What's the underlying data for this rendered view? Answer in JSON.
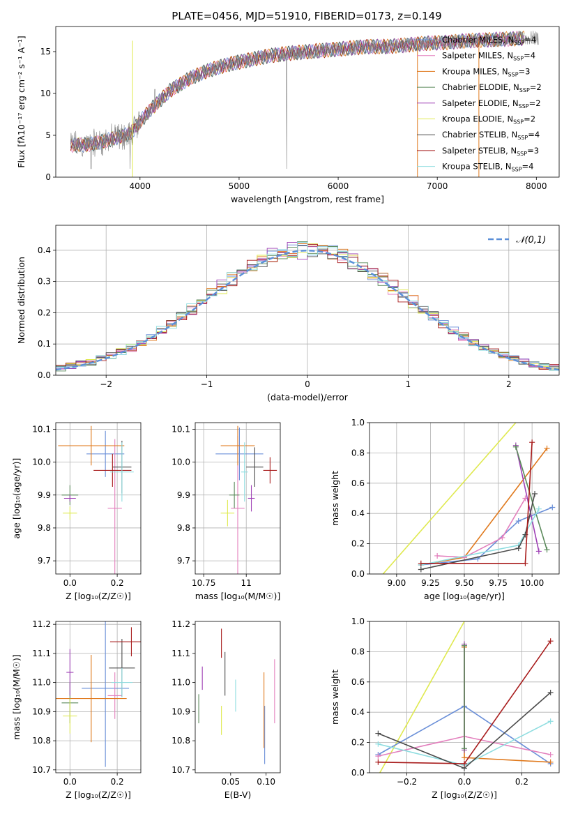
{
  "figure_title": "PLATE=0456, MJD=51910, FIBERID=0173, z=0.149",
  "colors": {
    "Chabrier MILES": "#6a8fd8",
    "Salpeter MILES": "#e37fbd",
    "Kroupa MILES": "#e07a1e",
    "Chabrier ELODIE": "#5b8a5b",
    "Salpeter ELODIE": "#9e3fb5",
    "Kroupa ELODIE": "#dfe94e",
    "Chabrier STELIB": "#4a4a4a",
    "Salpeter STELIB": "#a81c1c",
    "Kroupa STELIB": "#8edde0",
    "data": "#808080",
    "normal": "#5b8fd8"
  },
  "chart_data": [
    {
      "type": "line",
      "name": "spectrum",
      "xlabel": "wavelength [Angstrom, rest frame]",
      "ylabel": "Flux [fλ10⁻¹⁷ erg cm⁻² s⁻¹ A⁻¹]",
      "xlim": [
        3150,
        8230
      ],
      "ylim": [
        0,
        18
      ],
      "xticks": [
        4000,
        5000,
        6000,
        7000,
        8000
      ],
      "yticks": [
        0,
        5,
        10,
        15
      ],
      "continuum_x": [
        3300,
        3500,
        3700,
        3900,
        4100,
        4300,
        4500,
        4700,
        4900,
        5100,
        5300,
        5500,
        5700,
        5900,
        6100,
        6300,
        6500,
        6700,
        6900,
        7100,
        7300,
        7500,
        7700,
        7900
      ],
      "continuum_y": [
        3.8,
        3.9,
        4.5,
        5.2,
        8.0,
        10.3,
        11.8,
        12.8,
        13.5,
        14.0,
        14.5,
        14.8,
        15.0,
        15.2,
        15.4,
        15.6,
        15.6,
        15.8,
        16.0,
        16.1,
        16.3,
        16.4,
        16.5,
        16.6
      ],
      "legend": [
        {
          "label": "Chabrier MILES",
          "n": "4"
        },
        {
          "label": "Salpeter MILES",
          "n": "4"
        },
        {
          "label": "Kroupa MILES",
          "n": "3"
        },
        {
          "label": "Chabrier ELODIE",
          "n": "2"
        },
        {
          "label": "Salpeter ELODIE",
          "n": "2"
        },
        {
          "label": "Kroupa ELODIE",
          "n": "2"
        },
        {
          "label": "Chabrier STELIB",
          "n": "4"
        },
        {
          "label": "Salpeter STELIB",
          "n": "3"
        },
        {
          "label": "Kroupa STELIB",
          "n": "4"
        }
      ],
      "legend_nssp_label": "N",
      "legend_nssp_sub": "SSP",
      "legend_position": "upper right"
    },
    {
      "type": "histogram",
      "name": "residuals",
      "xlabel": "(data-model)/error",
      "ylabel": "Normed distribution",
      "xlim": [
        -2.5,
        2.5
      ],
      "ylim": [
        0,
        0.48
      ],
      "xticks": [
        -2,
        -1,
        0,
        1,
        2
      ],
      "yticks": [
        0.0,
        0.1,
        0.2,
        0.3,
        0.4
      ],
      "bin_width": 0.1,
      "bin_start": -2.5,
      "legend_label": "𝒩(0,1)",
      "grid": true
    },
    {
      "type": "scatter",
      "name": "age_vs_Z",
      "xlabel": "Z [log₁₀(Z/Z☉)]",
      "ylabel": "age  [log₁₀(age/yr)]",
      "xlim": [
        -0.06,
        0.3
      ],
      "ylim": [
        9.66,
        10.12
      ],
      "xticks": [
        0.0,
        0.2
      ],
      "yticks": [
        9.7,
        9.8,
        9.9,
        10.0,
        10.1
      ],
      "grid": true,
      "points": [
        {
          "model": "Chabrier MILES",
          "x": 0.15,
          "xerr": 0.08,
          "y": 10.025,
          "yerr": 0.07
        },
        {
          "model": "Salpeter MILES",
          "x": 0.19,
          "xerr": 0.03,
          "y": 9.86,
          "yerr": 0.21
        },
        {
          "model": "Kroupa MILES",
          "x": 0.09,
          "xerr": 0.14,
          "y": 10.05,
          "yerr": 0.06
        },
        {
          "model": "Chabrier ELODIE",
          "x": 0.0,
          "xerr": 0.035,
          "y": 9.9,
          "yerr": 0.03
        },
        {
          "model": "Salpeter ELODIE",
          "x": 0.0,
          "xerr": 0.025,
          "y": 9.89,
          "yerr": 0.01
        },
        {
          "model": "Kroupa ELODIE",
          "x": 0.0,
          "xerr": 0.03,
          "y": 9.845,
          "yerr": 0.02
        },
        {
          "model": "Chabrier STELIB",
          "x": 0.22,
          "xerr": 0.04,
          "y": 9.985,
          "yerr": 0.08
        },
        {
          "model": "Salpeter STELIB",
          "x": 0.18,
          "xerr": 0.08,
          "y": 9.975,
          "yerr": 0.05
        },
        {
          "model": "Kroupa STELIB",
          "x": 0.22,
          "xerr": 0.05,
          "y": 9.97,
          "yerr": 0.09
        }
      ]
    },
    {
      "type": "scatter",
      "name": "age_vs_mass",
      "xlabel": "mass [log₁₀(M/M☉)]",
      "ylabel": "",
      "xlim": [
        10.7,
        11.2
      ],
      "ylim": [
        9.66,
        10.12
      ],
      "xticks": [
        10.75,
        11.0
      ],
      "yticks": [
        9.7,
        9.8,
        9.9,
        10.0,
        10.1
      ],
      "grid": true,
      "points": [
        {
          "model": "Chabrier MILES",
          "x": 10.96,
          "xerr": 0.14,
          "y": 10.025,
          "yerr": 0.08
        },
        {
          "model": "Salpeter MILES",
          "x": 10.95,
          "xerr": 0.04,
          "y": 9.86,
          "yerr": 0.22
        },
        {
          "model": "Kroupa MILES",
          "x": 10.95,
          "xerr": 0.1,
          "y": 10.05,
          "yerr": 0.06
        },
        {
          "model": "Chabrier ELODIE",
          "x": 10.93,
          "xerr": 0.03,
          "y": 9.9,
          "yerr": 0.04
        },
        {
          "model": "Salpeter ELODIE",
          "x": 11.03,
          "xerr": 0.02,
          "y": 9.89,
          "yerr": 0.04
        },
        {
          "model": "Kroupa ELODIE",
          "x": 10.89,
          "xerr": 0.04,
          "y": 9.845,
          "yerr": 0.04
        },
        {
          "model": "Chabrier STELIB",
          "x": 11.05,
          "xerr": 0.05,
          "y": 9.985,
          "yerr": 0.06
        },
        {
          "model": "Salpeter STELIB",
          "x": 11.14,
          "xerr": 0.04,
          "y": 9.975,
          "yerr": 0.04
        },
        {
          "model": "Kroupa STELIB",
          "x": 10.99,
          "xerr": 0.02,
          "y": 9.97,
          "yerr": 0.09
        }
      ]
    },
    {
      "type": "line",
      "name": "mass_weight_vs_age",
      "xlabel": "age  [log₁₀(age/yr)]",
      "ylabel": "mass weight",
      "xlim": [
        8.8,
        10.2
      ],
      "ylim": [
        0,
        1.0
      ],
      "xticks": [
        9.0,
        9.25,
        9.5,
        9.75,
        10.0
      ],
      "yticks": [
        0.0,
        0.2,
        0.4,
        0.6,
        0.8,
        1.0
      ],
      "grid": true,
      "series": [
        {
          "model": "Kroupa ELODIE",
          "x": [
            8.9,
            9.88
          ],
          "y": [
            0.0,
            1.0
          ]
        },
        {
          "model": "Kroupa MILES",
          "x": [
            9.18,
            9.5,
            10.11
          ],
          "y": [
            0.06,
            0.11,
            0.83
          ]
        },
        {
          "model": "Chabrier MILES",
          "x": [
            9.18,
            9.6,
            9.9,
            10.15
          ],
          "y": [
            0.06,
            0.1,
            0.35,
            0.44
          ]
        },
        {
          "model": "Salpeter MILES",
          "x": [
            9.3,
            9.5,
            9.78,
            9.95
          ],
          "y": [
            0.12,
            0.11,
            0.24,
            0.5
          ]
        },
        {
          "model": "Salpeter ELODIE",
          "x": [
            9.88,
            10.05
          ],
          "y": [
            0.85,
            0.15
          ]
        },
        {
          "model": "Chabrier ELODIE",
          "x": [
            9.88,
            10.11
          ],
          "y": [
            0.84,
            0.16
          ]
        },
        {
          "model": "Kroupa STELIB",
          "x": [
            9.18,
            9.9,
            10.05
          ],
          "y": [
            0.06,
            0.19,
            0.43
          ]
        },
        {
          "model": "Chabrier STELIB",
          "x": [
            9.18,
            9.9,
            9.95,
            10.02
          ],
          "y": [
            0.03,
            0.17,
            0.26,
            0.53
          ]
        },
        {
          "model": "Salpeter STELIB",
          "x": [
            9.18,
            9.95,
            10.0
          ],
          "y": [
            0.07,
            0.07,
            0.87
          ]
        }
      ]
    },
    {
      "type": "scatter",
      "name": "mass_vs_Z",
      "xlabel": "Z [log₁₀(Z/Z☉)]",
      "ylabel": "mass [log₁₀(M/M☉)]",
      "xlim": [
        -0.06,
        0.3
      ],
      "ylim": [
        10.69,
        11.21
      ],
      "xticks": [
        0.0,
        0.2
      ],
      "yticks": [
        10.7,
        10.8,
        10.9,
        11.0,
        11.1,
        11.2
      ],
      "grid": true,
      "points": [
        {
          "model": "Chabrier MILES",
          "x": 0.15,
          "xerr": 0.1,
          "y": 10.98,
          "yerr": 0.27
        },
        {
          "model": "Salpeter MILES",
          "x": 0.19,
          "xerr": 0.03,
          "y": 10.955,
          "yerr": 0.08
        },
        {
          "model": "Kroupa MILES",
          "x": 0.09,
          "xerr": 0.15,
          "y": 10.945,
          "yerr": 0.15
        },
        {
          "model": "Chabrier ELODIE",
          "x": 0.0,
          "xerr": 0.035,
          "y": 10.93,
          "yerr": 0.07
        },
        {
          "model": "Salpeter ELODIE",
          "x": 0.0,
          "xerr": 0.015,
          "y": 11.035,
          "yerr": 0.08
        },
        {
          "model": "Kroupa ELODIE",
          "x": 0.0,
          "xerr": 0.03,
          "y": 10.885,
          "yerr": 0.06
        },
        {
          "model": "Chabrier STELIB",
          "x": 0.22,
          "xerr": 0.055,
          "y": 11.05,
          "yerr": 0.1
        },
        {
          "model": "Salpeter STELIB",
          "x": 0.26,
          "xerr": 0.09,
          "y": 11.14,
          "yerr": 0.05
        },
        {
          "model": "Kroupa STELIB",
          "x": 0.22,
          "xerr": 0.045,
          "y": 11.0,
          "yerr": 0.05
        }
      ]
    },
    {
      "type": "scatter",
      "name": "mass_vs_EBV",
      "xlabel": "E(B-V)",
      "ylabel": "",
      "xlim": [
        0.0,
        0.12
      ],
      "ylim": [
        10.69,
        11.21
      ],
      "xticks": [
        0.05,
        0.1
      ],
      "yticks": [
        10.7,
        10.8,
        10.9,
        11.0,
        11.1,
        11.2
      ],
      "grid": false,
      "points": [
        {
          "model": "Chabrier MILES",
          "x": 0.098,
          "y": 10.82,
          "yerr": 0.1
        },
        {
          "model": "Salpeter MILES",
          "x": 0.112,
          "y": 10.97,
          "yerr": 0.11
        },
        {
          "model": "Kroupa MILES",
          "x": 0.097,
          "y": 10.905,
          "yerr": 0.13
        },
        {
          "model": "Chabrier ELODIE",
          "x": 0.005,
          "y": 10.91,
          "yerr": 0.05
        },
        {
          "model": "Salpeter ELODIE",
          "x": 0.01,
          "y": 11.015,
          "yerr": 0.04
        },
        {
          "model": "Kroupa ELODIE",
          "x": 0.037,
          "y": 10.87,
          "yerr": 0.05
        },
        {
          "model": "Chabrier STELIB",
          "x": 0.042,
          "y": 11.03,
          "yerr": 0.075
        },
        {
          "model": "Salpeter STELIB",
          "x": 0.037,
          "y": 11.135,
          "yerr": 0.05
        },
        {
          "model": "Kroupa STELIB",
          "x": 0.057,
          "y": 10.955,
          "yerr": 0.055
        }
      ]
    },
    {
      "type": "line",
      "name": "mass_weight_vs_Z",
      "xlabel": "Z [log₁₀(Z/Z☉)]",
      "ylabel": "mass weight",
      "xlim": [
        -0.33,
        0.33
      ],
      "ylim": [
        0,
        1.0
      ],
      "xticks": [
        -0.2,
        0.0,
        0.2
      ],
      "yticks": [
        0.0,
        0.2,
        0.4,
        0.6,
        0.8,
        1.0
      ],
      "grid": true,
      "series": [
        {
          "model": "Kroupa ELODIE",
          "x": [
            -0.3,
            0.0
          ],
          "y": [
            -0.02,
            1.0
          ]
        },
        {
          "model": "Chabrier MILES",
          "x": [
            -0.3,
            0.0,
            0.3
          ],
          "y": [
            0.12,
            0.44,
            0.06
          ]
        },
        {
          "model": "Salpeter MILES",
          "x": [
            -0.3,
            0.0,
            0.3
          ],
          "y": [
            0.11,
            0.24,
            0.12
          ]
        },
        {
          "model": "Kroupa MILES",
          "x": [
            0.0,
            0.0,
            0.3
          ],
          "y": [
            0.83,
            0.1,
            0.07
          ]
        },
        {
          "model": "Salpeter ELODIE",
          "x": [
            0.0,
            0.0
          ],
          "y": [
            0.85,
            0.15
          ]
        },
        {
          "model": "Chabrier ELODIE",
          "x": [
            0.0,
            0.0
          ],
          "y": [
            0.84,
            0.16
          ]
        },
        {
          "model": "Kroupa STELIB",
          "x": [
            -0.3,
            0.0,
            0.3
          ],
          "y": [
            0.19,
            0.05,
            0.34
          ]
        },
        {
          "model": "Chabrier STELIB",
          "x": [
            -0.3,
            0.0,
            0.3
          ],
          "y": [
            0.26,
            0.03,
            0.53
          ]
        },
        {
          "model": "Salpeter STELIB",
          "x": [
            -0.3,
            0.0,
            0.3
          ],
          "y": [
            0.07,
            0.06,
            0.87
          ]
        }
      ]
    }
  ]
}
